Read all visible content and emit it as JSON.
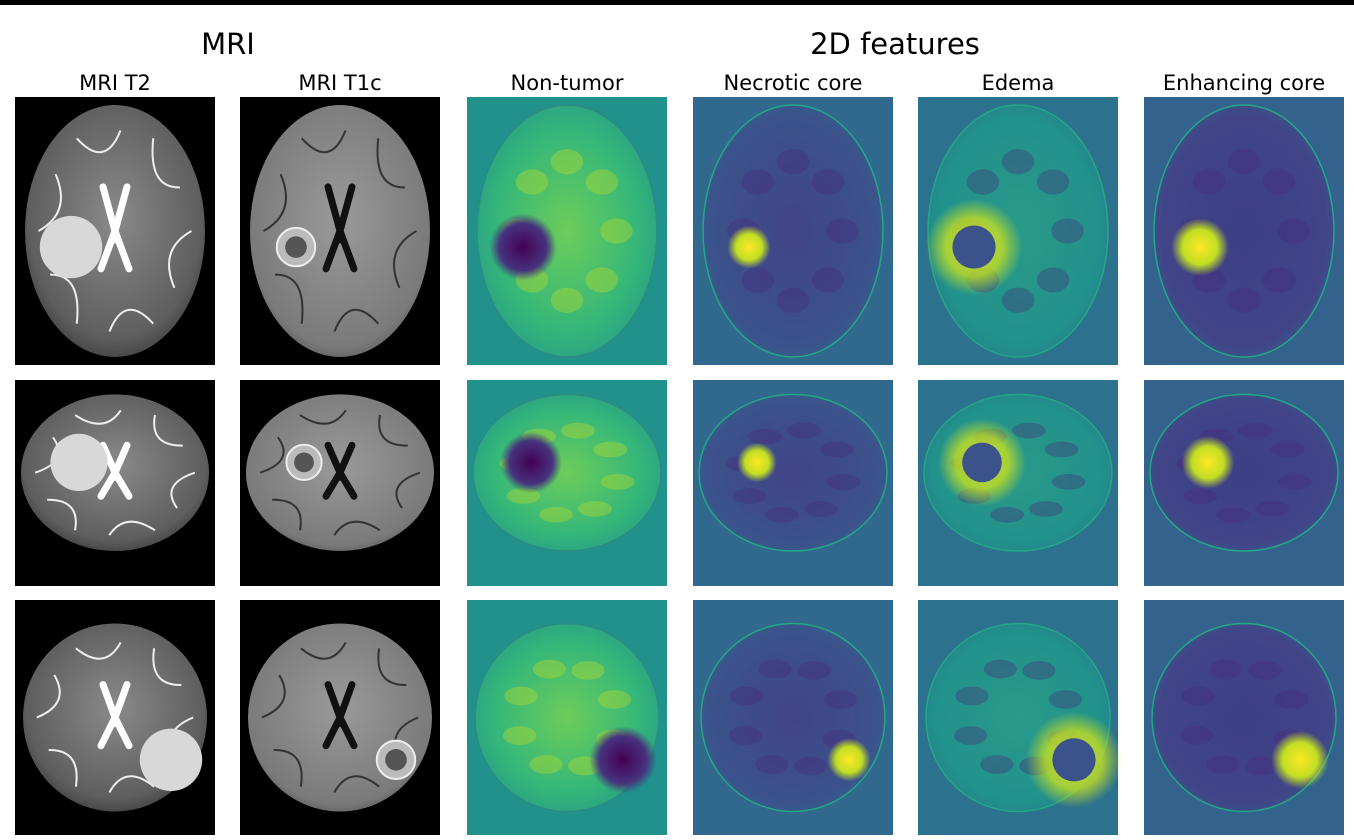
{
  "header": {
    "groups": [
      "MRI",
      "2D features"
    ]
  },
  "columns": [
    "MRI T2",
    "MRI T1c",
    "Non-tumor",
    "Necrotic core",
    "Edema",
    "Enhancing core"
  ]
}
